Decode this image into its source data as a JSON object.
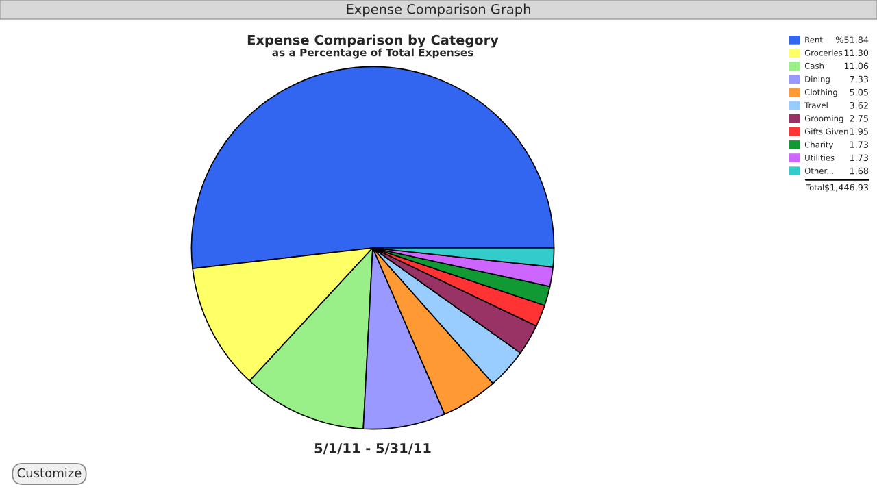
{
  "chart_data": {
    "type": "pie",
    "title": "Expense Comparison by Category",
    "subtitle": "as a Percentage of Total Expenses",
    "categories": [
      "Rent",
      "Groceries",
      "Cash",
      "Dining",
      "Clothing",
      "Travel",
      "Grooming",
      "Gifts Given",
      "Charity",
      "Utilities",
      "Other..."
    ],
    "values": [
      51.84,
      11.3,
      11.06,
      7.33,
      5.05,
      3.62,
      2.75,
      1.95,
      1.73,
      1.73,
      1.68
    ],
    "colors": [
      "#3366f0",
      "#ffff66",
      "#99f088",
      "#9999ff",
      "#ff9933",
      "#99ccff",
      "#993366",
      "#ff3333",
      "#119933",
      "#cc66ff",
      "#33cccc"
    ],
    "value_labels": [
      "%51.84",
      "11.30",
      "11.06",
      "7.33",
      "5.05",
      "3.62",
      "2.75",
      "1.95",
      "1.73",
      "1.73",
      "1.68"
    ],
    "legend": "right",
    "annotations": [
      "Expense Comparison Graph",
      "5/1/11 - 5/31/11",
      "Total",
      "$1,446.93",
      "Customize"
    ]
  }
}
